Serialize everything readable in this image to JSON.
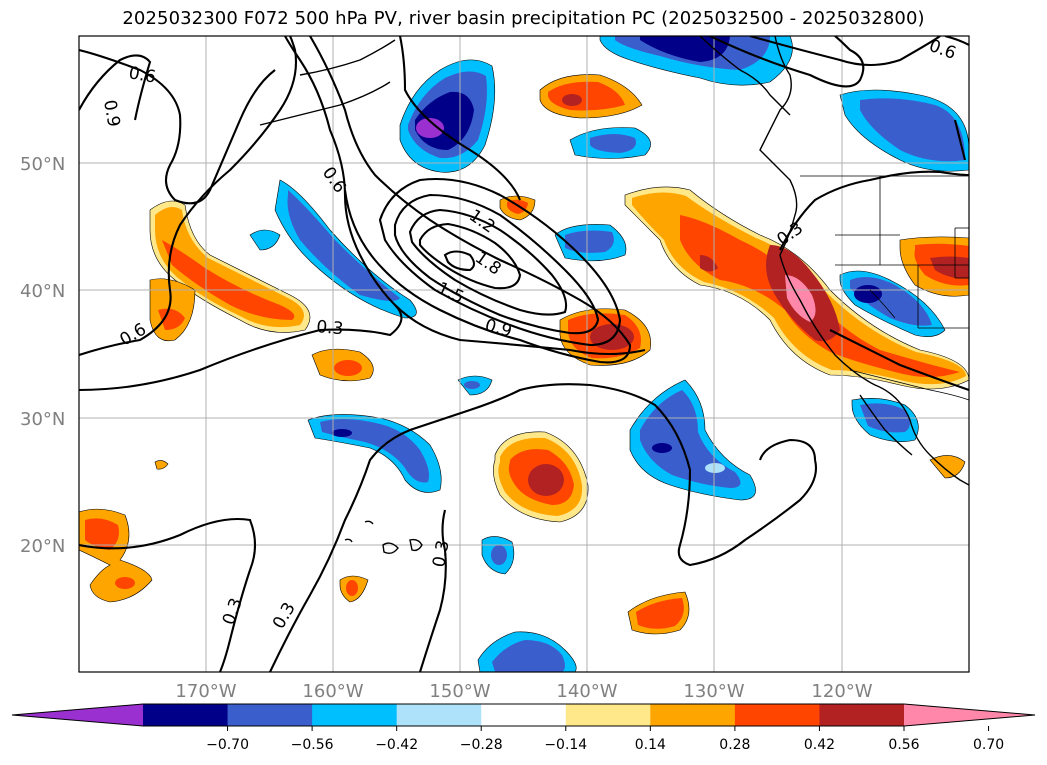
{
  "title": "2025032300 F072 500 hPa PV, river basin precipitation PC (2025032500 - 2025032800)",
  "map": {
    "lat_ticks": [
      "50°N",
      "40°N",
      "30°N",
      "20°N"
    ],
    "lon_ticks": [
      "170°W",
      "160°W",
      "150°W",
      "140°W",
      "130°W",
      "120°W"
    ],
    "contour_labels": [
      "0.6",
      "0.9",
      "0.6",
      "1.2",
      "1.8",
      "1.5",
      "0.9",
      "0.3",
      "0.6",
      "0.3",
      "0.3",
      "0.3",
      "0.3",
      "0.6"
    ]
  },
  "colorbar": {
    "colors": [
      "#9b30d0",
      "#000088",
      "#3a5fcd",
      "#00bfff",
      "#aee2fa",
      "#ffffff",
      "#ffe88a",
      "#ffa500",
      "#ff4500",
      "#b22222",
      "#ff88aa"
    ],
    "tick_labels": [
      "−0.70",
      "−0.56",
      "−0.42",
      "−0.28",
      "−0.14",
      "0.14",
      "0.28",
      "0.42",
      "0.56",
      "0.70"
    ]
  }
}
